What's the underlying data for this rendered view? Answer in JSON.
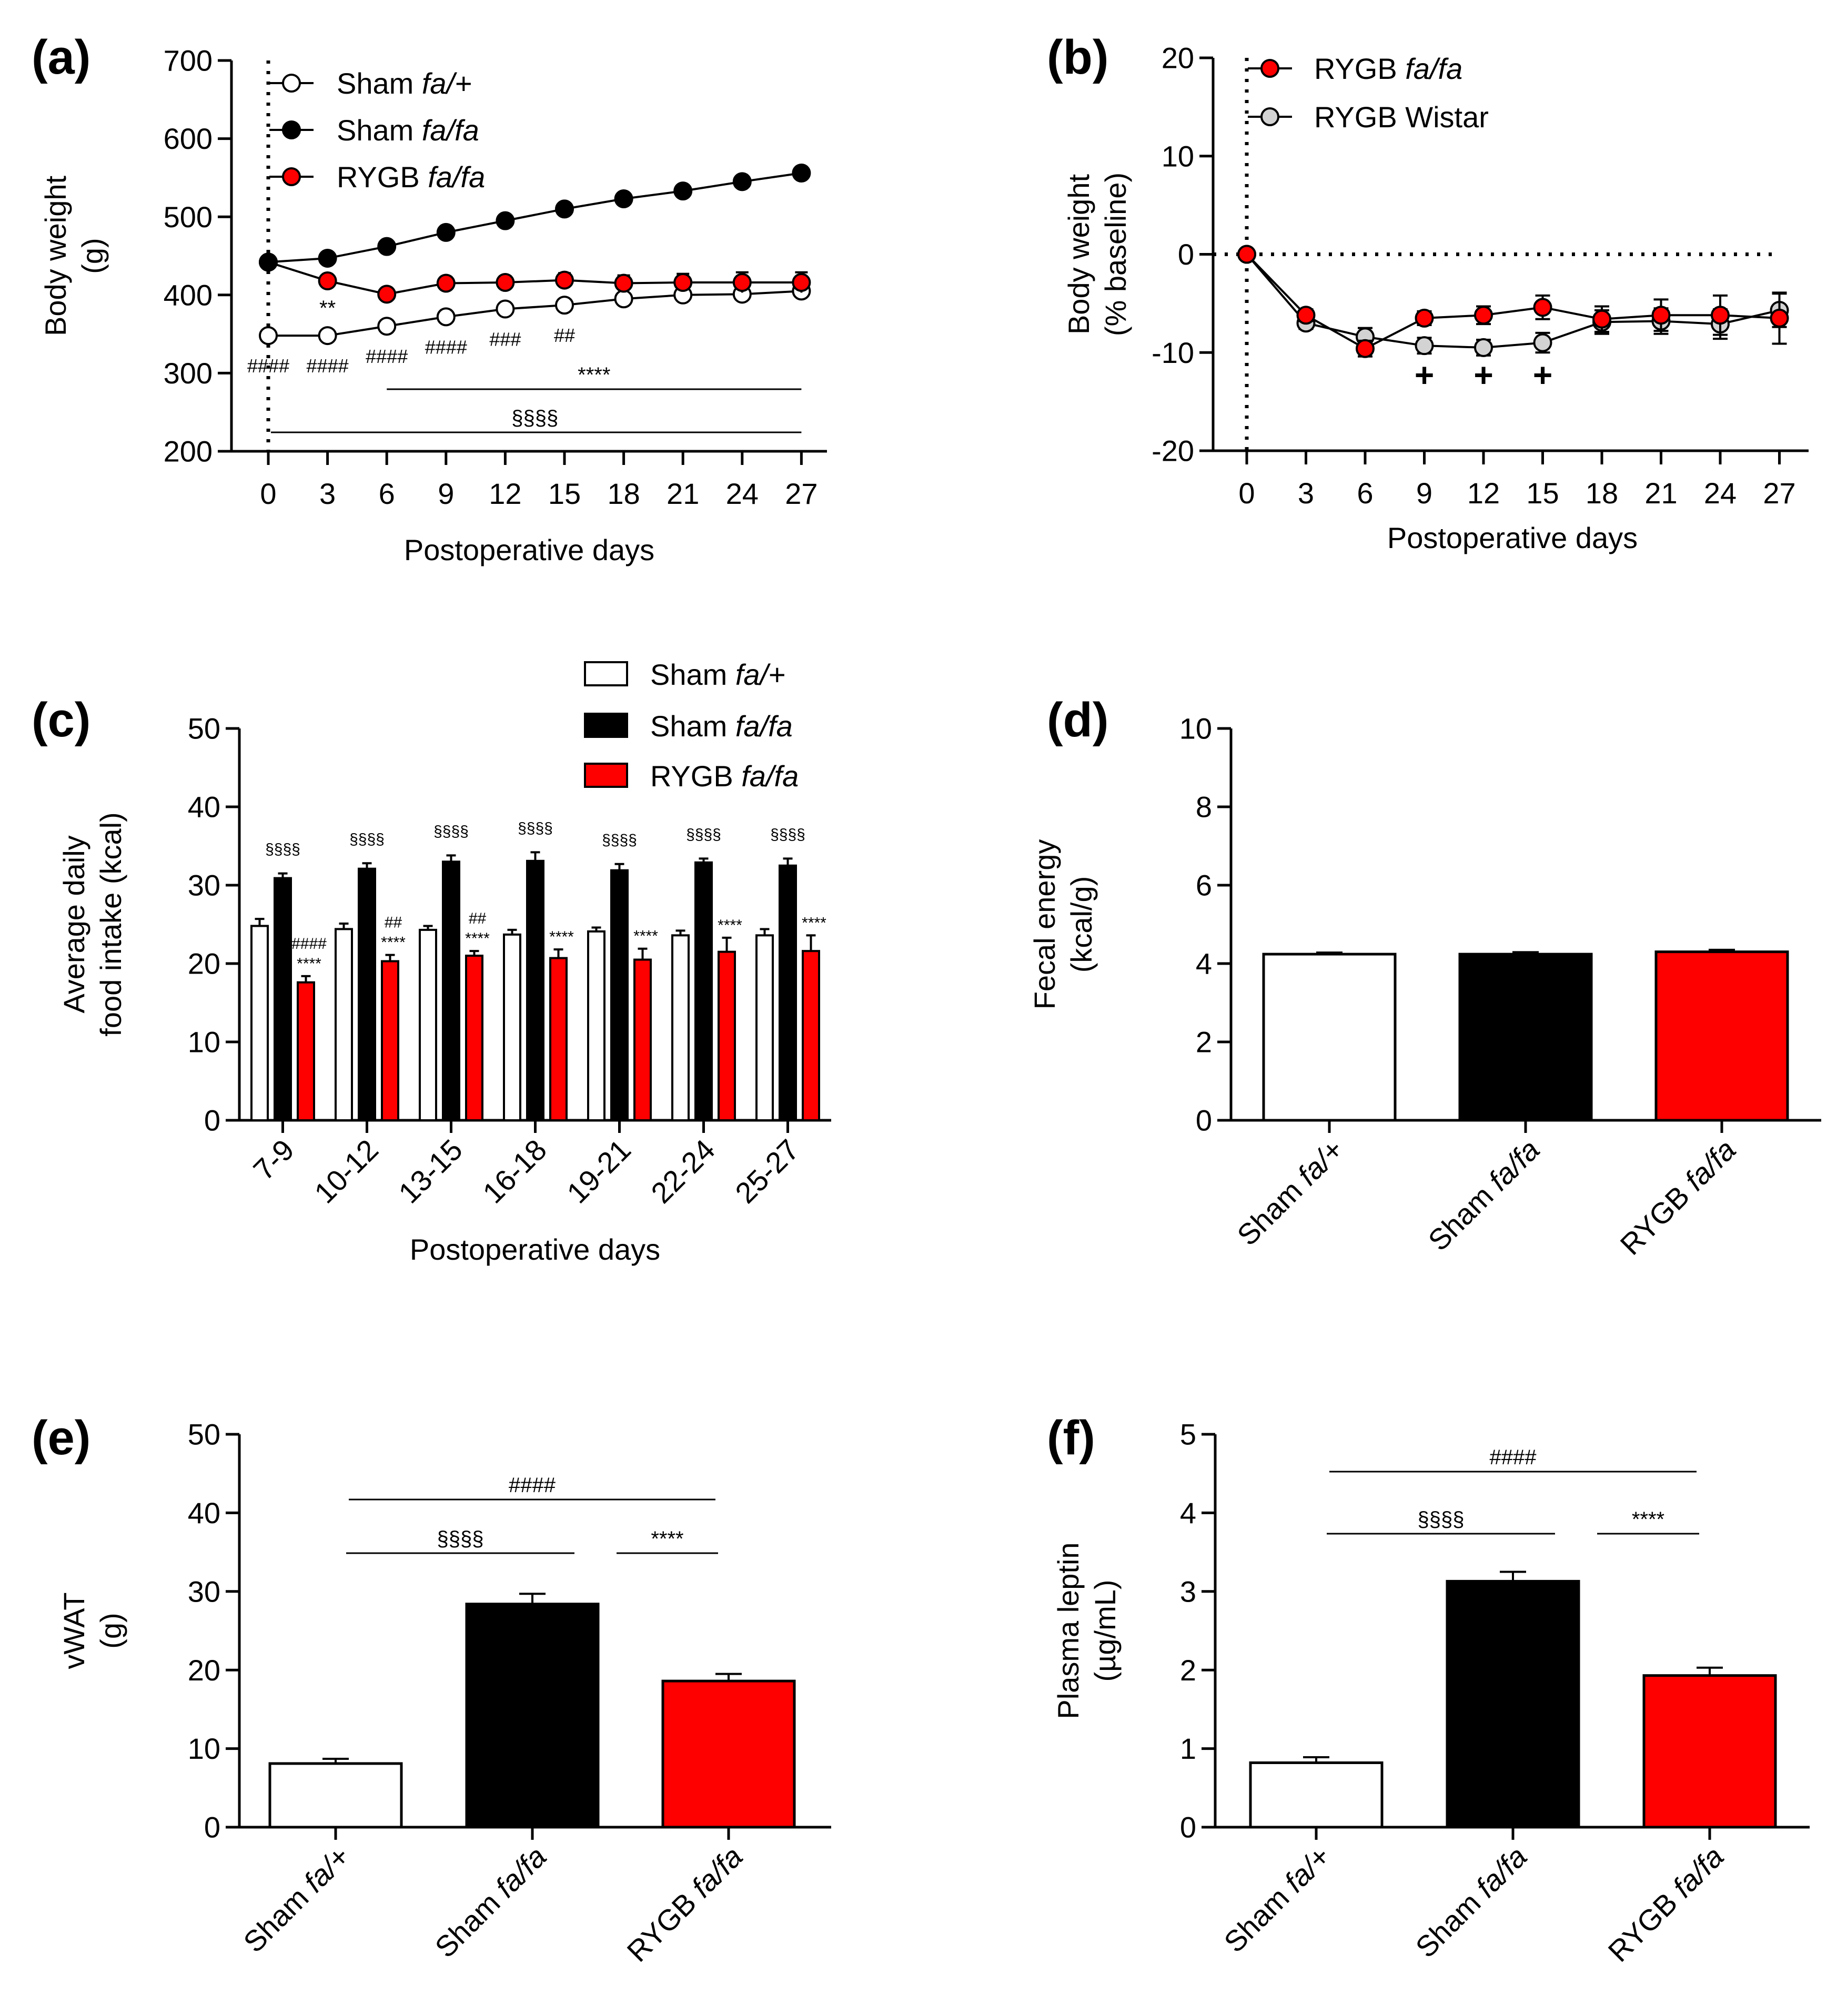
{
  "colors": {
    "white": "#ffffff",
    "black": "#000000",
    "red": "#ff0000",
    "grey": "#d3d3d3"
  },
  "chart_data": [
    {
      "id": "a",
      "type": "line",
      "panel_label": "(a)",
      "ylabel": [
        "Body weight",
        "(g)"
      ],
      "xlabel": "Postoperative days",
      "ylim": [
        200,
        700
      ],
      "yticks": [
        "200",
        "300",
        "400",
        "500",
        "600",
        "700"
      ],
      "x": [
        0,
        3,
        6,
        9,
        12,
        15,
        18,
        21,
        24,
        27
      ],
      "xticks": [
        "0",
        "3",
        "6",
        "9",
        "12",
        "15",
        "18",
        "21",
        "24",
        "27"
      ],
      "series": [
        {
          "name": "Sham ",
          "name_em": "fa/+",
          "color": "#ffffff",
          "values": [
            348,
            348,
            360,
            372,
            382,
            387,
            395,
            400,
            401,
            405
          ],
          "err": [
            4,
            4,
            4,
            5,
            5,
            6,
            7,
            8,
            10,
            10
          ]
        },
        {
          "name": "Sham ",
          "name_em": "fa/fa",
          "color": "#000000",
          "values": [
            442,
            447,
            462,
            480,
            495,
            510,
            523,
            533,
            545,
            556
          ],
          "err": [
            5,
            6,
            6,
            6,
            6,
            6,
            7,
            7,
            7,
            8
          ]
        },
        {
          "name": "RYGB ",
          "name_em": "fa/fa",
          "color": "#ff0000",
          "values": [
            442,
            418,
            401,
            415,
            416,
            419,
            415,
            416,
            416,
            416
          ],
          "err": [
            6,
            7,
            7,
            8,
            8,
            9,
            10,
            11,
            13,
            13
          ]
        }
      ],
      "marks_under_points": [
        {
          "x": 0,
          "text": "####"
        },
        {
          "x": 3,
          "text": "####"
        },
        {
          "x": 6,
          "text": "####"
        },
        {
          "x": 9,
          "text": "####"
        },
        {
          "x": 12,
          "text": "###"
        },
        {
          "x": 15,
          "text": "##"
        }
      ],
      "mark_above": {
        "x": 3,
        "text": "**"
      },
      "brackets": [
        {
          "x_from": 6,
          "x_to": 27,
          "text": "****"
        },
        {
          "x_from": 0,
          "x_to": 27,
          "text": "§§§§"
        }
      ]
    },
    {
      "id": "b",
      "type": "line",
      "panel_label": "(b)",
      "ylabel": [
        "Body weight",
        "(% baseline)"
      ],
      "xlabel": "Postoperative days",
      "ylim": [
        -20,
        20
      ],
      "yticks": [
        "-20",
        "-10",
        "0",
        "10",
        "20"
      ],
      "x": [
        0,
        3,
        6,
        9,
        12,
        15,
        18,
        21,
        24,
        27
      ],
      "xticks": [
        "0",
        "3",
        "6",
        "9",
        "12",
        "15",
        "18",
        "21",
        "24",
        "27"
      ],
      "series": [
        {
          "name": "RYGB ",
          "name_em": "fa/fa",
          "color": "#ff0000",
          "values": [
            0,
            -6.2,
            -9.6,
            -6.5,
            -6.2,
            -5.4,
            -6.6,
            -6.2,
            -6.2,
            -6.5
          ],
          "err": [
            0,
            0.6,
            0.8,
            0.7,
            0.9,
            1.2,
            1.3,
            1.6,
            2.0,
            2.6
          ]
        },
        {
          "name": "RYGB Wistar",
          "name_em": "",
          "color": "#d3d3d3",
          "values": [
            0,
            -7.0,
            -8.4,
            -9.3,
            -9.5,
            -9.0,
            -6.9,
            -6.8,
            -7.1,
            -5.7
          ],
          "err": [
            0,
            0.6,
            0.9,
            0.8,
            0.8,
            1.0,
            1.2,
            1.3,
            1.5,
            1.7
          ]
        }
      ],
      "plus_marks": [
        {
          "x": 9,
          "text": "+"
        },
        {
          "x": 12,
          "text": "+"
        },
        {
          "x": 15,
          "text": "+"
        }
      ]
    },
    {
      "id": "c",
      "type": "bar",
      "panel_label": "(c)",
      "ylabel": [
        "Average daily",
        "food intake (kcal)"
      ],
      "xlabel": "Postoperative days",
      "ylim": [
        0,
        50
      ],
      "yticks": [
        "0",
        "10",
        "20",
        "30",
        "40",
        "50"
      ],
      "categories": [
        "7-9",
        "10-12",
        "13-15",
        "16-18",
        "19-21",
        "22-24",
        "25-27"
      ],
      "series": [
        {
          "name": "Sham ",
          "name_em": "fa/+",
          "color": "#ffffff",
          "values": [
            24.8,
            24.4,
            24.3,
            23.7,
            24.1,
            23.6,
            23.6
          ],
          "err": [
            0.9,
            0.7,
            0.5,
            0.6,
            0.5,
            0.6,
            0.8
          ]
        },
        {
          "name": "Sham ",
          "name_em": "fa/fa",
          "color": "#000000",
          "values": [
            30.9,
            32.1,
            33.0,
            33.1,
            31.9,
            32.9,
            32.5
          ],
          "err": [
            0.6,
            0.7,
            0.8,
            1.1,
            0.8,
            0.5,
            0.9
          ]
        },
        {
          "name": "RYGB ",
          "name_em": "fa/fa",
          "color": "#ff0000",
          "values": [
            17.6,
            20.3,
            21.0,
            20.7,
            20.5,
            21.5,
            21.6
          ],
          "err": [
            0.8,
            0.8,
            0.6,
            1.1,
            1.4,
            1.8,
            2.0
          ]
        }
      ],
      "sham_fafa_marks": [
        "§§§§",
        "§§§§",
        "§§§§",
        "§§§§",
        "§§§§",
        "§§§§",
        "§§§§"
      ],
      "rygb_marks": [
        [
          "####",
          "****"
        ],
        [
          "##",
          "****"
        ],
        [
          "##",
          "****"
        ],
        [
          "****"
        ],
        [
          "****"
        ],
        [
          "****"
        ],
        [
          "****"
        ]
      ]
    },
    {
      "id": "d",
      "type": "bar",
      "panel_label": "(d)",
      "ylabel": [
        "Fecal energy",
        "(kcal/g)"
      ],
      "ylim": [
        0,
        10
      ],
      "yticks": [
        "0",
        "2",
        "4",
        "6",
        "8",
        "10"
      ],
      "categories": [
        {
          "plain": "Sham ",
          "em": "fa/+"
        },
        {
          "plain": "Sham ",
          "em": "fa/fa"
        },
        {
          "plain": "RYGB ",
          "em": "fa/fa"
        }
      ],
      "values": [
        4.24,
        4.24,
        4.3
      ],
      "err": [
        0.04,
        0.05,
        0.05
      ],
      "colors": [
        "#ffffff",
        "#000000",
        "#ff0000"
      ]
    },
    {
      "id": "e",
      "type": "bar",
      "panel_label": "(e)",
      "ylabel": [
        "vWAT",
        "(g)"
      ],
      "ylim": [
        0,
        50
      ],
      "yticks": [
        "0",
        "10",
        "20",
        "30",
        "40",
        "50"
      ],
      "categories": [
        {
          "plain": "Sham ",
          "em": "fa/+"
        },
        {
          "plain": "Sham ",
          "em": "fa/fa"
        },
        {
          "plain": "RYGB ",
          "em": "fa/fa"
        }
      ],
      "values": [
        8.1,
        28.4,
        18.6
      ],
      "err": [
        0.6,
        1.3,
        0.9
      ],
      "colors": [
        "#ffffff",
        "#000000",
        "#ff0000"
      ],
      "brackets": [
        {
          "from": 0,
          "to": 2,
          "level": 2,
          "text": "####"
        },
        {
          "from": 0,
          "to": 1,
          "level": 1,
          "text": "§§§§"
        },
        {
          "from": 1,
          "to": 2,
          "level": 1,
          "text": "****"
        }
      ]
    },
    {
      "id": "f",
      "type": "bar",
      "panel_label": "(f)",
      "ylabel": [
        "Plasma leptin",
        "(µg/mL)"
      ],
      "ylim": [
        0,
        5
      ],
      "yticks": [
        "0",
        "1",
        "2",
        "3",
        "4",
        "5"
      ],
      "categories": [
        {
          "plain": "Sham ",
          "em": "fa/+"
        },
        {
          "plain": "Sham ",
          "em": "fa/fa"
        },
        {
          "plain": "RYGB ",
          "em": "fa/fa"
        }
      ],
      "values": [
        0.82,
        3.13,
        1.93
      ],
      "err": [
        0.07,
        0.12,
        0.1
      ],
      "colors": [
        "#ffffff",
        "#000000",
        "#ff0000"
      ],
      "brackets": [
        {
          "from": 0,
          "to": 2,
          "level": 2,
          "text": "####"
        },
        {
          "from": 0,
          "to": 1,
          "level": 1,
          "text": "§§§§"
        },
        {
          "from": 1,
          "to": 2,
          "level": 1,
          "text": "****"
        }
      ]
    }
  ]
}
